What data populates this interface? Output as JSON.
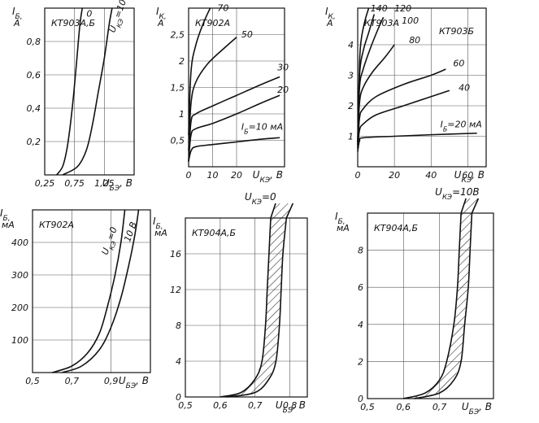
{
  "chart_data": [
    {
      "id": "p1",
      "type": "line",
      "device_label": "КТ903А,Б",
      "ylabel_main": "I",
      "ylabel_sub": "Б",
      "ylabel_unit": "А",
      "xlabel_main": "U",
      "xlabel_sub": "БЭ",
      "xlabel_unit": ", В",
      "xlim": [
        0.25,
        1.75
      ],
      "ylim": [
        0,
        1.0
      ],
      "xticks": [
        0.25,
        0.75,
        1.25
      ],
      "xtick_labels": [
        "0,25",
        "0,75",
        "1,25"
      ],
      "yticks": [
        0.2,
        0.4,
        0.6,
        0.8
      ],
      "ytick_labels": [
        "0,2",
        "0,4",
        "0,6",
        "0,8"
      ],
      "grid": true,
      "series": [
        {
          "name": "0",
          "points": [
            [
              0.45,
              0
            ],
            [
              0.55,
              0.05
            ],
            [
              0.62,
              0.15
            ],
            [
              0.68,
              0.3
            ],
            [
              0.74,
              0.5
            ],
            [
              0.79,
              0.7
            ],
            [
              0.84,
              0.9
            ],
            [
              0.88,
              1.0
            ]
          ]
        },
        {
          "name": "U_КЭ=10В",
          "points": [
            [
              0.55,
              0
            ],
            [
              0.8,
              0.05
            ],
            [
              0.95,
              0.15
            ],
            [
              1.05,
              0.3
            ],
            [
              1.15,
              0.5
            ],
            [
              1.25,
              0.7
            ],
            [
              1.33,
              0.9
            ],
            [
              1.38,
              1.0
            ]
          ]
        }
      ],
      "curve_labels": [
        {
          "text": "0",
          "x": 0.95,
          "y": 0.95
        },
        {
          "text": "U_КЭ=10 В",
          "x": 1.42,
          "y": 0.85,
          "rotate": -70
        }
      ]
    },
    {
      "id": "p2",
      "type": "line",
      "device_label": "КТ902А",
      "ylabel_main": "I",
      "ylabel_sub": "К",
      "ylabel_unit": "А",
      "xlabel_main": "U",
      "xlabel_sub": "КЭ",
      "xlabel_unit": ", В",
      "xlim": [
        0,
        40
      ],
      "ylim": [
        0,
        3.0
      ],
      "xticks": [
        0,
        10,
        20
      ],
      "xtick_labels": [
        "0",
        "10",
        "20"
      ],
      "yticks": [
        0.5,
        1,
        1.5,
        2,
        2.5
      ],
      "ytick_labels": [
        "0,5",
        "1",
        "1,5",
        "2",
        "2,5"
      ],
      "grid": true,
      "series": [
        {
          "name": "I_Б=10 мА",
          "points": [
            [
              0,
              0.1
            ],
            [
              1,
              0.3
            ],
            [
              3,
              0.38
            ],
            [
              10,
              0.42
            ],
            [
              20,
              0.47
            ],
            [
              30,
              0.52
            ],
            [
              38,
              0.55
            ]
          ]
        },
        {
          "name": "20",
          "points": [
            [
              0,
              0.1
            ],
            [
              1,
              0.6
            ],
            [
              3,
              0.72
            ],
            [
              10,
              0.82
            ],
            [
              20,
              1.0
            ],
            [
              30,
              1.2
            ],
            [
              38,
              1.35
            ]
          ]
        },
        {
          "name": "30",
          "points": [
            [
              0,
              0.1
            ],
            [
              1,
              0.85
            ],
            [
              3,
              1.0
            ],
            [
              10,
              1.15
            ],
            [
              20,
              1.35
            ],
            [
              30,
              1.55
            ],
            [
              38,
              1.7
            ]
          ]
        },
        {
          "name": "50",
          "points": [
            [
              0,
              0.3
            ],
            [
              1,
              1.2
            ],
            [
              3,
              1.6
            ],
            [
              8,
              1.95
            ],
            [
              15,
              2.25
            ],
            [
              20,
              2.45
            ]
          ]
        },
        {
          "name": "70",
          "points": [
            [
              0,
              0.6
            ],
            [
              1,
              1.8
            ],
            [
              3,
              2.3
            ],
            [
              6,
              2.7
            ],
            [
              9,
              3.0
            ]
          ]
        }
      ],
      "curve_labels": [
        {
          "text": "70",
          "x": 12,
          "y": 2.95
        },
        {
          "text": "50",
          "x": 22,
          "y": 2.45
        },
        {
          "text": "30",
          "x": 37,
          "y": 1.82
        },
        {
          "text": "20",
          "x": 37,
          "y": 1.4
        },
        {
          "text": "I_Б=10 мА",
          "x": 22,
          "y": 0.7
        }
      ]
    },
    {
      "id": "p3",
      "type": "line",
      "device_label": "КТ903А",
      "device_label_2": "КТ903Б",
      "ylabel_main": "I",
      "ylabel_sub": "К",
      "ylabel_unit": "А",
      "xlabel_main": "U",
      "xlabel_sub": "КЭ",
      "xlabel_unit": ", В",
      "xlim": [
        0,
        70
      ],
      "ylim": [
        0,
        5.2
      ],
      "xticks": [
        0,
        20,
        40,
        60
      ],
      "xtick_labels": [
        "0",
        "20",
        "40",
        "60"
      ],
      "yticks": [
        1,
        2,
        3,
        4
      ],
      "ytick_labels": [
        "1",
        "2",
        "3",
        "4"
      ],
      "grid": true,
      "series": [
        {
          "name": "I_Б=20 мА",
          "points": [
            [
              0,
              0.5
            ],
            [
              1,
              0.85
            ],
            [
              3,
              0.95
            ],
            [
              20,
              1.0
            ],
            [
              40,
              1.05
            ],
            [
              65,
              1.1
            ]
          ]
        },
        {
          "name": "40",
          "points": [
            [
              0,
              0.6
            ],
            [
              1,
              1.2
            ],
            [
              3,
              1.4
            ],
            [
              10,
              1.7
            ],
            [
              25,
              2.0
            ],
            [
              40,
              2.3
            ],
            [
              50,
              2.5
            ]
          ]
        },
        {
          "name": "60",
          "points": [
            [
              0,
              0.6
            ],
            [
              1,
              1.6
            ],
            [
              3,
              1.9
            ],
            [
              10,
              2.3
            ],
            [
              25,
              2.7
            ],
            [
              40,
              3.0
            ],
            [
              48,
              3.2
            ]
          ]
        },
        {
          "name": "80",
          "points": [
            [
              0,
              0.7
            ],
            [
              1,
              2.1
            ],
            [
              3,
              2.6
            ],
            [
              8,
              3.1
            ],
            [
              15,
              3.6
            ],
            [
              20,
              4.0
            ]
          ]
        },
        {
          "name": "100",
          "points": [
            [
              0,
              0.7
            ],
            [
              1,
              2.6
            ],
            [
              3,
              3.2
            ],
            [
              7,
              3.9
            ],
            [
              11,
              4.5
            ],
            [
              14,
              4.9
            ]
          ]
        },
        {
          "name": "120",
          "points": [
            [
              0,
              0.8
            ],
            [
              1,
              3.0
            ],
            [
              3,
              3.8
            ],
            [
              6,
              4.4
            ],
            [
              9,
              5.0
            ]
          ]
        },
        {
          "name": "140",
          "points": [
            [
              0,
              0.8
            ],
            [
              1,
              3.4
            ],
            [
              2,
              4.2
            ],
            [
              4,
              4.8
            ],
            [
              6,
              5.2
            ]
          ]
        }
      ],
      "curve_labels": [
        {
          "text": "140",
          "x": 7,
          "y": 5.1
        },
        {
          "text": "120",
          "x": 20,
          "y": 5.1
        },
        {
          "text": "100",
          "x": 24,
          "y": 4.7
        },
        {
          "text": "80",
          "x": 28,
          "y": 4.05
        },
        {
          "text": "60",
          "x": 52,
          "y": 3.3
        },
        {
          "text": "40",
          "x": 55,
          "y": 2.5
        },
        {
          "text": "I_Б=20 мА",
          "x": 45,
          "y": 1.3
        }
      ]
    },
    {
      "id": "p4",
      "type": "line",
      "device_label": "КТ902А",
      "ylabel_main": "I",
      "ylabel_sub": "Б",
      "ylabel_unit": "мА",
      "xlabel_main": "U",
      "xlabel_sub": "БЭ",
      "xlabel_unit": ", В",
      "xlim": [
        0.5,
        1.1
      ],
      "ylim": [
        0,
        500
      ],
      "xticks": [
        0.5,
        0.7,
        0.9
      ],
      "xtick_labels": [
        "0,5",
        "0,7",
        "0,9"
      ],
      "yticks": [
        100,
        200,
        300,
        400
      ],
      "ytick_labels": [
        "100",
        "200",
        "300",
        "400"
      ],
      "grid": true,
      "series": [
        {
          "name": "U_КЭ=0",
          "points": [
            [
              0.6,
              0
            ],
            [
              0.7,
              20
            ],
            [
              0.78,
              60
            ],
            [
              0.84,
              120
            ],
            [
              0.88,
              200
            ],
            [
              0.92,
              300
            ],
            [
              0.95,
              400
            ],
            [
              0.97,
              500
            ]
          ]
        },
        {
          "name": "10 В",
          "points": [
            [
              0.65,
              0
            ],
            [
              0.75,
              20
            ],
            [
              0.84,
              70
            ],
            [
              0.9,
              140
            ],
            [
              0.95,
              230
            ],
            [
              0.99,
              330
            ],
            [
              1.02,
              420
            ],
            [
              1.04,
              500
            ]
          ]
        }
      ],
      "curve_labels": [
        {
          "text": "U_КЭ=0",
          "x": 0.88,
          "y": 360,
          "rotate": -70
        },
        {
          "text": "10 В",
          "x": 0.995,
          "y": 400,
          "rotate": -70
        }
      ]
    },
    {
      "id": "p5",
      "type": "area",
      "device_label": "КТ904А,Б",
      "top_label": "U_КЭ=0",
      "ylabel_main": "I",
      "ylabel_sub": "Б",
      "ylabel_unit": "мА",
      "xlabel_main": "U",
      "xlabel_sub": "БЭ",
      "xlabel_unit": ", В",
      "xlim": [
        0.5,
        0.85
      ],
      "ylim": [
        0,
        20
      ],
      "xticks": [
        0.5,
        0.6,
        0.7,
        0.8
      ],
      "xtick_labels": [
        "0,5",
        "0,6",
        "0,7",
        "0,8"
      ],
      "yticks": [
        0,
        4,
        8,
        12,
        16
      ],
      "ytick_labels": [
        "0",
        "4",
        "8",
        "12",
        "16"
      ],
      "grid": true,
      "band_lower": [
        [
          0.6,
          0
        ],
        [
          0.66,
          0.5
        ],
        [
          0.7,
          2
        ],
        [
          0.72,
          4
        ],
        [
          0.73,
          8
        ],
        [
          0.735,
          12
        ],
        [
          0.74,
          16
        ],
        [
          0.745,
          20
        ]
      ],
      "band_upper": [
        [
          0.62,
          0
        ],
        [
          0.7,
          0.5
        ],
        [
          0.74,
          2
        ],
        [
          0.76,
          4
        ],
        [
          0.77,
          8
        ],
        [
          0.775,
          12
        ],
        [
          0.78,
          16
        ],
        [
          0.79,
          20
        ]
      ]
    },
    {
      "id": "p6",
      "type": "area",
      "device_label": "КТ904А,Б",
      "top_label": "U_КЭ=10В",
      "ylabel_main": "I",
      "ylabel_sub": "Б",
      "ylabel_unit": "мА",
      "xlabel_main": "U",
      "xlabel_sub": "БЭ",
      "xlabel_unit": ", В",
      "xlim": [
        0.5,
        0.85
      ],
      "ylim": [
        0,
        10
      ],
      "xticks": [
        0.5,
        0.6,
        0.7
      ],
      "xtick_labels": [
        "0,5",
        "0,6",
        "0,7"
      ],
      "yticks": [
        0,
        2,
        4,
        6,
        8
      ],
      "ytick_labels": [
        "0",
        "2",
        "4",
        "6",
        "8"
      ],
      "grid": true,
      "band_lower": [
        [
          0.6,
          0
        ],
        [
          0.66,
          0.3
        ],
        [
          0.7,
          1
        ],
        [
          0.72,
          2
        ],
        [
          0.74,
          4
        ],
        [
          0.75,
          6
        ],
        [
          0.755,
          8
        ],
        [
          0.76,
          10
        ]
      ],
      "band_upper": [
        [
          0.63,
          0
        ],
        [
          0.7,
          0.3
        ],
        [
          0.74,
          1
        ],
        [
          0.76,
          2
        ],
        [
          0.77,
          4
        ],
        [
          0.78,
          6
        ],
        [
          0.785,
          8
        ],
        [
          0.79,
          10
        ]
      ]
    }
  ]
}
